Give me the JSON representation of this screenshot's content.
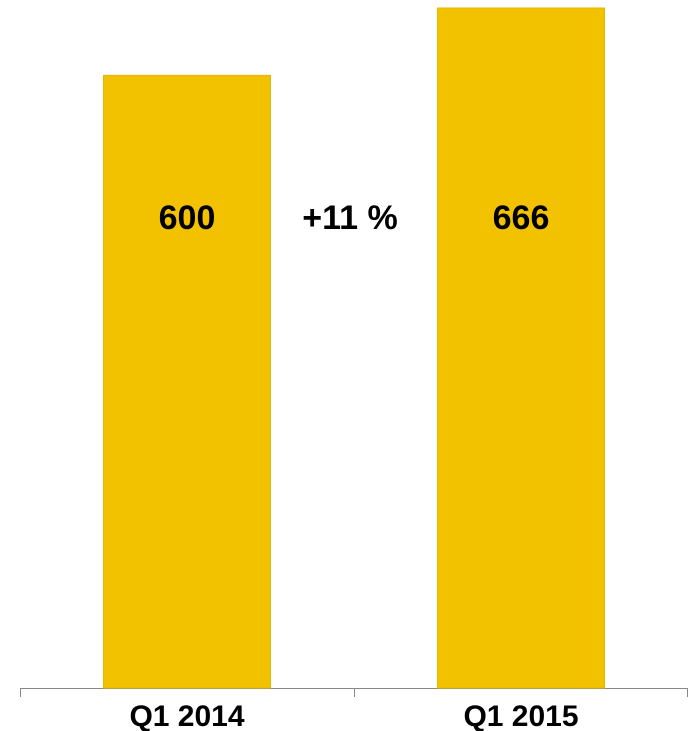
{
  "chart_data": {
    "type": "bar",
    "categories": [
      "Q1 2014",
      "Q1 2015"
    ],
    "values": [
      600,
      666
    ],
    "color": "#f2c200",
    "annotation": "+11 %"
  }
}
